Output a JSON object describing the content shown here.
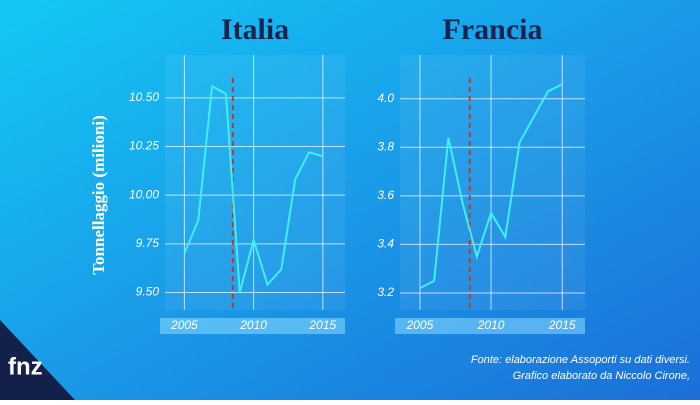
{
  "chart_data": [
    {
      "type": "line",
      "title": "Italia",
      "ylabel": "Tonnellaggio (milioni)",
      "x": [
        2005,
        2006,
        2007,
        2008,
        2009,
        2010,
        2011,
        2012,
        2013,
        2014,
        2015
      ],
      "series": [
        {
          "name": "Italia",
          "color": "#3ff0f0",
          "values": [
            9.7,
            9.87,
            10.56,
            10.52,
            9.5,
            9.77,
            9.54,
            9.62,
            10.08,
            10.22,
            10.2
          ]
        }
      ],
      "xlim": [
        2003.6,
        2016.6
      ],
      "xticks": [
        2005,
        2010,
        2015
      ],
      "ylim": [
        9.41,
        10.72
      ],
      "yticks": [
        {
          "value": 9.5,
          "label": "9.50"
        },
        {
          "value": 9.75,
          "label": "9.75"
        },
        {
          "value": 10,
          "label": "10.00"
        },
        {
          "value": 10.25,
          "label": "10.25"
        },
        {
          "value": 10.5,
          "label": "10.50"
        }
      ],
      "vline": 2008.5,
      "grid": true
    },
    {
      "type": "line",
      "title": "Francia",
      "x": [
        2005,
        2006,
        2007,
        2008,
        2009,
        2010,
        2011,
        2012,
        2014,
        2015
      ],
      "series": [
        {
          "name": "Francia",
          "color": "#3ff0f0",
          "values": [
            3.22,
            3.25,
            3.84,
            3.57,
            3.35,
            3.53,
            3.43,
            3.82,
            4.03,
            4.06
          ]
        }
      ],
      "xlim": [
        2003.6,
        2016.6
      ],
      "xticks": [
        2005,
        2010,
        2015
      ],
      "ylim": [
        3.13,
        4.18
      ],
      "yticks": [
        3.2,
        3.4,
        3.6,
        3.8,
        {
          "value": 4,
          "label": "4.0"
        }
      ],
      "vline": 2008.5,
      "grid": true
    }
  ],
  "logo": "fnz",
  "source": "Fonte: elaborazione Assoporti su dati diversi.",
  "credit": "Grafico elaborato da Niccolo Cirone,"
}
